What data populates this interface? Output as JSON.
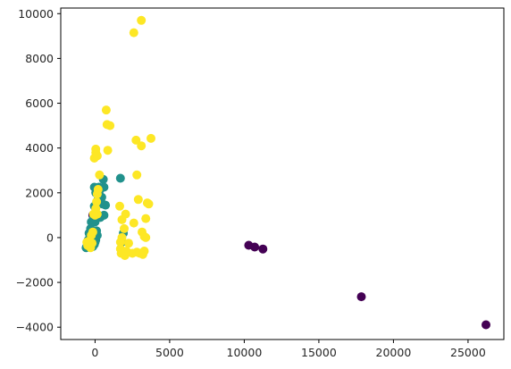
{
  "chart_data": {
    "type": "scatter",
    "title": "",
    "xlabel": "",
    "ylabel": "",
    "xlim": [
      -2300,
      27400
    ],
    "ylim": [
      -4550,
      10250
    ],
    "xticks": [
      0,
      5000,
      10000,
      15000,
      20000,
      25000
    ],
    "xtick_labels": [
      "0",
      "5000",
      "10000",
      "15000",
      "20000",
      "25000"
    ],
    "yticks": [
      -4000,
      -2000,
      0,
      2000,
      4000,
      6000,
      8000,
      10000
    ],
    "ytick_labels": [
      "−4000",
      "−2000",
      "0",
      "2000",
      "4000",
      "6000",
      "8000",
      "10000"
    ],
    "grid": false,
    "legend": "none",
    "series": [
      {
        "color": "#440154",
        "points": [
          [
            -150,
            1000
          ],
          [
            10300,
            -340
          ],
          [
            10700,
            -420
          ],
          [
            11250,
            -510
          ],
          [
            17850,
            -2640
          ],
          [
            26200,
            -3890
          ]
        ]
      },
      {
        "color": "#21918c",
        "points": [
          [
            -600,
            -450
          ],
          [
            -500,
            -350
          ],
          [
            -450,
            -100
          ],
          [
            -350,
            100
          ],
          [
            -300,
            400
          ],
          [
            -400,
            200
          ],
          [
            -250,
            -200
          ],
          [
            -200,
            50
          ],
          [
            -100,
            150
          ],
          [
            -50,
            -300
          ],
          [
            50,
            -100
          ],
          [
            100,
            300
          ],
          [
            0,
            700
          ],
          [
            -100,
            900
          ],
          [
            100,
            1450
          ],
          [
            -50,
            1400
          ],
          [
            -50,
            2250
          ],
          [
            50,
            2000
          ],
          [
            200,
            1700
          ],
          [
            300,
            2100
          ],
          [
            350,
            900
          ],
          [
            450,
            1800
          ],
          [
            500,
            1500
          ],
          [
            550,
            2600
          ],
          [
            600,
            2250
          ],
          [
            600,
            1000
          ],
          [
            700,
            1450
          ],
          [
            -150,
            -400
          ],
          [
            0,
            -200
          ],
          [
            150,
            100
          ],
          [
            1700,
            2650
          ],
          [
            1800,
            -200
          ],
          [
            2000,
            -650
          ],
          [
            1900,
            200
          ],
          [
            -250,
            700
          ],
          [
            -350,
            -250
          ],
          [
            250,
            2250
          ]
        ]
      },
      {
        "color": "#fde725",
        "points": [
          [
            3100,
            9700
          ],
          [
            2600,
            9150
          ],
          [
            750,
            5700
          ],
          [
            800,
            5050
          ],
          [
            1000,
            5000
          ],
          [
            3750,
            4430
          ],
          [
            2750,
            4350
          ],
          [
            3100,
            4100
          ],
          [
            50,
            3950
          ],
          [
            50,
            3800
          ],
          [
            -50,
            3550
          ],
          [
            150,
            3650
          ],
          [
            850,
            3900
          ],
          [
            2800,
            2800
          ],
          [
            300,
            2800
          ],
          [
            200,
            2150
          ],
          [
            150,
            1950
          ],
          [
            100,
            1600
          ],
          [
            50,
            1300
          ],
          [
            150,
            1050
          ],
          [
            2900,
            1700
          ],
          [
            3500,
            1550
          ],
          [
            3600,
            1500
          ],
          [
            1650,
            1400
          ],
          [
            2050,
            1050
          ],
          [
            3400,
            850
          ],
          [
            2600,
            650
          ],
          [
            1800,
            800
          ],
          [
            1950,
            400
          ],
          [
            3150,
            250
          ],
          [
            3300,
            50
          ],
          [
            3400,
            0
          ],
          [
            1800,
            0
          ],
          [
            1700,
            -200
          ],
          [
            2250,
            -250
          ],
          [
            2500,
            -700
          ],
          [
            2800,
            -650
          ],
          [
            3000,
            -700
          ],
          [
            3200,
            -750
          ],
          [
            3300,
            -600
          ],
          [
            1700,
            -500
          ],
          [
            1750,
            -700
          ],
          [
            2000,
            -800
          ],
          [
            2100,
            -600
          ],
          [
            -500,
            -350
          ],
          [
            -400,
            -150
          ],
          [
            -300,
            -450
          ],
          [
            -250,
            100
          ],
          [
            -150,
            250
          ],
          [
            -100,
            1050
          ],
          [
            0,
            1000
          ],
          [
            -200,
            -250
          ],
          [
            -550,
            -200
          ]
        ]
      }
    ]
  }
}
